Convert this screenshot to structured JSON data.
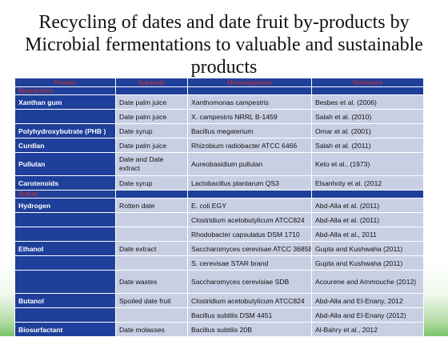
{
  "title": "Recycling of dates and date fruit by-products by Microbial fermentations to valuable and sustainable products",
  "table": {
    "headers": [
      "Product",
      "Substrate",
      "Microorganisms",
      "Reference"
    ],
    "rows": [
      {
        "type": "group",
        "label": "Biopolymers"
      },
      {
        "type": "row",
        "product": "Xanthan gum",
        "substrate": "Date palm juice",
        "microorganism": "Xanthomonas campestris",
        "reference": "Besbes et al. (2006)"
      },
      {
        "type": "row",
        "product": "",
        "substrate": "Date palm juice",
        "microorganism": " X. campestris NRRL B-1459",
        "reference": "Salah et al. (2010)"
      },
      {
        "type": "row",
        "product": "Polyhydroxybutrate (PHB )",
        "substrate": "Date syrup",
        "microorganism": "Bacillus megaterium",
        "reference": "Omar et al. (2001)"
      },
      {
        "type": "row",
        "product": "Curdlan",
        "substrate": "Date palm juice",
        "microorganism": "Rhizobium radiobacter ATCC 6466",
        "reference": "Salah et al. (2011)"
      },
      {
        "type": "row",
        "product": "Pullulan",
        "substrate": "Date and Date extract",
        "microorganism": "Aureobasidium pullulan",
        "reference": "Keto et al., (1973)"
      },
      {
        "type": "row",
        "product": "Carotenoids",
        "substrate": "Date syrup",
        "microorganism": "Lactobacillus plantarum QS3",
        "reference": "Elsanhoty et al. (2012"
      },
      {
        "type": "group",
        "label": "Biofuel"
      },
      {
        "type": "row",
        "product": "Hydrogen",
        "substrate": "Rotten date",
        "microorganism": "E. coli EGY",
        "reference": "Abd-Alla et al. (2011)"
      },
      {
        "type": "row",
        "product": "",
        "substrate": "",
        "microorganism": "Clostridium acetobutylicum ATCC824",
        "reference": "Abd-Alla et al. (2011)"
      },
      {
        "type": "row",
        "product": "",
        "substrate": "",
        "microorganism": "Rhodobacter capsulatus DSM 1710",
        "reference": "Abd-Alla et al., 2011"
      },
      {
        "type": "row",
        "product": "Ethanol",
        "substrate": "Date extract",
        "microorganism": "Saccharomyces cerevisae ATCC 36858",
        "reference": "Gupta and Kushwaha (2011)"
      },
      {
        "type": "row",
        "product": "",
        "substrate": "",
        "microorganism": "S. cerevisae STAR brand",
        "reference": "Gupta and Kushwaha (2011)"
      },
      {
        "type": "row",
        "product": "",
        "substrate": "Date wastes",
        "microorganism": "Saccharomyces cerevisiae SDB",
        "reference": "Acourene and Ammouche (2012)"
      },
      {
        "type": "row",
        "product": "Butanol",
        "substrate": "Spoiled date fruit",
        "microorganism": "Clostridium acetobutylicum ATCC824",
        "reference": "Abd-Alla and El-Enany, 2012"
      },
      {
        "type": "row",
        "product": "",
        "substrate": "",
        "microorganism": "Bacillus subtilis DSM 4451",
        "reference": "Abd-Alla and El-Enany (2012)"
      },
      {
        "type": "row",
        "product": "Biosurfactant",
        "substrate": "Date molasses",
        "microorganism": "Bacillus subtilis 20B",
        "reference": "Al-Bahry et al., 2012"
      }
    ]
  },
  "colors": {
    "header_bg": "#1e3f9a",
    "header_text": "#d32f2f",
    "row_bg": "#c9cfe3",
    "product_text": "#ffffff",
    "background_bottom": "#7cc46a"
  }
}
